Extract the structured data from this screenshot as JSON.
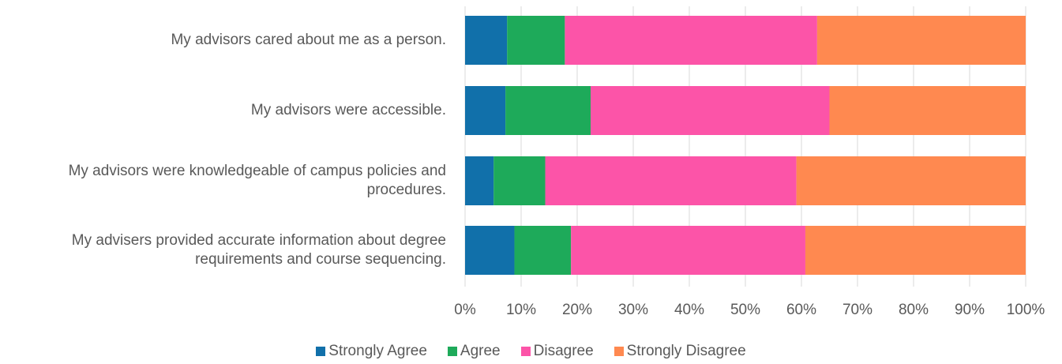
{
  "chart_data": {
    "type": "bar",
    "orientation": "horizontal",
    "stacked": true,
    "categories": [
      [
        "My advisors cared about me as a person."
      ],
      [
        "My advisors were accessible."
      ],
      [
        "My advisors were knowledgeable of campus policies and",
        "procedures."
      ],
      [
        "My advisers provided accurate information about degree",
        "requirements and course sequencing."
      ]
    ],
    "series": [
      {
        "name": "Strongly Agree",
        "color": "#1170aa",
        "values": [
          0.075,
          0.072,
          0.051,
          0.088
        ]
      },
      {
        "name": "Agree",
        "color": "#1eaa5a",
        "values": [
          0.103,
          0.152,
          0.092,
          0.101
        ]
      },
      {
        "name": "Disagree",
        "color": "#fc54a8",
        "values": [
          0.45,
          0.426,
          0.448,
          0.418
        ]
      },
      {
        "name": "Strongly Disagree",
        "color": "#ff8950",
        "values": [
          0.372,
          0.35,
          0.409,
          0.393
        ]
      }
    ],
    "x_ticks": [
      "0%",
      "10%",
      "20%",
      "30%",
      "40%",
      "50%",
      "60%",
      "70%",
      "80%",
      "90%",
      "100%"
    ],
    "xlim": [
      0,
      1
    ],
    "grid": true,
    "legend_position": "bottom"
  }
}
